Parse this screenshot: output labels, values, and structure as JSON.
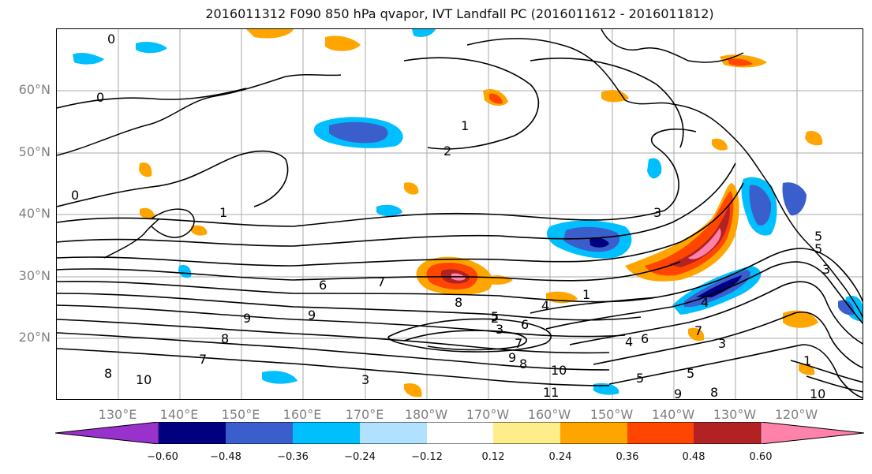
{
  "title": "2016011312 F090 850 hPa qvapor, IVT Landfall PC (2016011612 - 2016011812)",
  "lat_labels": [
    "60°N",
    "50°N",
    "40°N",
    "30°N",
    "20°N"
  ],
  "lon_labels": [
    "130°E",
    "140°E",
    "150°E",
    "160°E",
    "170°E",
    "180°W",
    "170°W",
    "160°W",
    "150°W",
    "140°W",
    "130°W",
    "120°W"
  ],
  "colorbar": {
    "ticks": [
      "−0.60",
      "−0.48",
      "−0.36",
      "−0.24",
      "−0.12",
      "0.12",
      "0.24",
      "0.36",
      "0.48",
      "0.60"
    ],
    "colors": [
      "#9932CC",
      "#000080",
      "#3A5FCD",
      "#00BFFF",
      "#B0E2FF",
      "#FFFFFF",
      "#FFEC8B",
      "#FFA500",
      "#FF4500",
      "#B22222",
      "#FF82AB"
    ]
  },
  "contour_labels": [
    "0",
    "0",
    "0",
    "1",
    "2",
    "1",
    "3",
    "6",
    "7",
    "8",
    "9",
    "8",
    "9",
    "8",
    "7",
    "3",
    "4",
    "5",
    "6",
    "7",
    "8",
    "9",
    "10",
    "11",
    "5",
    "5",
    "3",
    "1",
    "10",
    "9",
    "8",
    "5",
    "4",
    "3",
    "2",
    "1",
    "7",
    "6",
    "5",
    "4",
    "3",
    "10"
  ]
}
